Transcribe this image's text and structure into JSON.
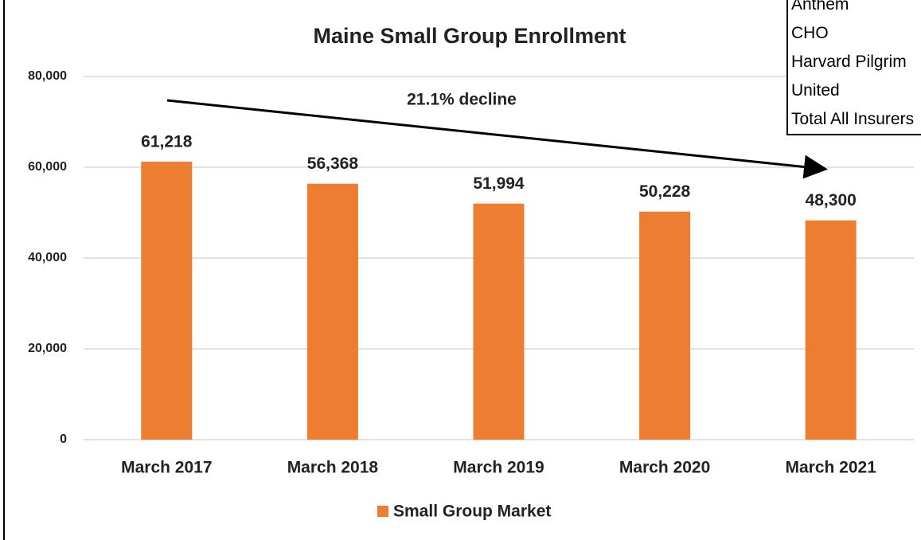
{
  "chart_data": {
    "type": "bar",
    "title": "Maine Small Group Enrollment",
    "annotation": "21.1% decline",
    "categories": [
      "March 2017",
      "March 2018",
      "March 2019",
      "March 2020",
      "March 2021"
    ],
    "series": [
      {
        "name": "Small Group Market",
        "color": "#ed7d31",
        "values": [
          61218,
          56368,
          51994,
          50228,
          48300
        ],
        "value_labels": [
          "61,218",
          "56,368",
          "51,994",
          "50,228",
          "48,300"
        ]
      }
    ],
    "ylim": [
      0,
      80000
    ],
    "yticks": [
      0,
      {
        "value": 20000,
        "label": "20,000"
      },
      {
        "value": 40000,
        "label": "40,000"
      },
      {
        "value": 60000,
        "label": "60,000"
      },
      {
        "value": 80000,
        "label": "80,000"
      }
    ],
    "grid": true,
    "legend": "bottom"
  },
  "table": {
    "rows": [
      "Anthem",
      "CHO",
      "Harvard Pilgrim",
      "United",
      "Total All Insurers"
    ]
  }
}
